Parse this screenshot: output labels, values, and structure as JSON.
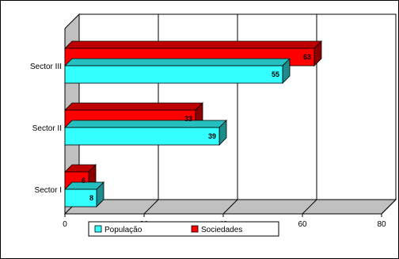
{
  "chart_data": {
    "type": "bar",
    "orientation": "horizontal",
    "three_d": true,
    "categories": [
      "Sector I",
      "Sector II",
      "Sector III"
    ],
    "series": [
      {
        "name": "População",
        "values": [
          8,
          39,
          55
        ],
        "color": "#33ffff"
      },
      {
        "name": "Sociedades",
        "values": [
          6,
          33,
          63
        ],
        "color": "#ff0000"
      }
    ],
    "xlim": [
      0,
      80
    ],
    "xticks": [
      "0",
      "20",
      "40",
      "60",
      "80"
    ],
    "grid": "vertical",
    "legend_position": "bottom"
  }
}
